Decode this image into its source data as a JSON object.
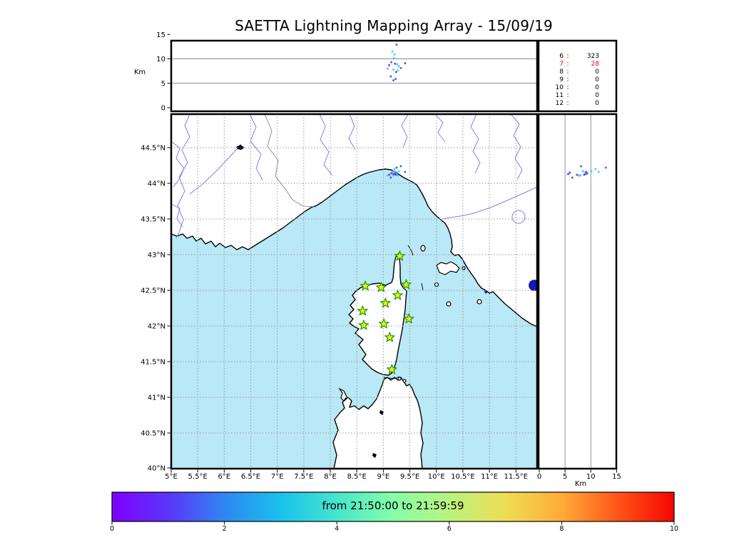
{
  "title": "SAETTA Lightning Mapping Array - 15/09/19",
  "top_panel": {
    "ylabel": "Km",
    "ytick_labels": [
      "0",
      "5",
      "10",
      "15"
    ]
  },
  "counts_panel": {
    "rows": [
      {
        "label": "6",
        "value": "323",
        "color": "#000000"
      },
      {
        "label": "7",
        "value": "28",
        "color": "#ff0000"
      },
      {
        "label": "8",
        "value": "0",
        "color": "#000000"
      },
      {
        "label": "9",
        "value": "0",
        "color": "#000000"
      },
      {
        "label": "10",
        "value": "0",
        "color": "#000000"
      },
      {
        "label": "11",
        "value": "0",
        "color": "#000000"
      },
      {
        "label": "12",
        "value": "0",
        "color": "#000000"
      }
    ]
  },
  "map_panel": {
    "lon_tick_labels": [
      "5°E",
      "5.5°E",
      "6°E",
      "6.5°E",
      "7°E",
      "7.5°E",
      "8°E",
      "8.5°E",
      "9°E",
      "9.5°E",
      "10°E",
      "10.5°E",
      "11°E",
      "11.5°E"
    ],
    "lat_tick_labels": [
      "44.5°N",
      "44°N",
      "43.5°N",
      "43°N",
      "42.5°N",
      "42°N",
      "41.5°N",
      "41°N",
      "40.5°N",
      "40°N"
    ]
  },
  "right_panel": {
    "xlabel": "Km",
    "xtick_labels": [
      "0",
      "5",
      "10",
      "15"
    ]
  },
  "colorbar": {
    "label": "from 21:50:00 to 21:59:59",
    "tick_labels": [
      "0",
      "2",
      "4",
      "6",
      "8",
      "10"
    ],
    "gradient": [
      "#7f00ff",
      "#5a35f8",
      "#2f86f2",
      "#19c2ec",
      "#46e5cc",
      "#85ffa9",
      "#baf37e",
      "#eedd55",
      "#ffab3a",
      "#ff5517",
      "#f80400"
    ]
  },
  "colors": {
    "sea": "#b9e8f6",
    "land": "#ffffff",
    "coast": "#000000",
    "grid": "#999999",
    "river": "#8080f0",
    "country_border": "#777777",
    "panel_grid": "#888888",
    "star_fill": "#ffee00",
    "star_edge": "#1fa01f",
    "lake_dark": "#1515cc",
    "highlight_row": "#ff0000"
  },
  "chart_data": {
    "type": "scatter",
    "title": "SAETTA Lightning Mapping Array - 15/09/19",
    "description": "Lightning VHF sources colored by time over a map of the Corsica region, with altitude-vs-longitude projection (top), altitude-vs-latitude projection (right), per-station count table, and a time colorbar.",
    "axes": {
      "map": {
        "xlim": [
          5,
          11.9
        ],
        "ylim": [
          40,
          44.97
        ],
        "lon_ticks_degE": [
          5,
          5.5,
          6,
          6.5,
          7,
          7.5,
          8,
          8.5,
          9,
          9.5,
          10,
          10.5,
          11,
          11.5
        ],
        "lat_ticks_degN": [
          44.5,
          44,
          43.5,
          43,
          42.5,
          42,
          41.5,
          41,
          40.5,
          40
        ],
        "grid": "dashed"
      },
      "top": {
        "ylabel": "Km",
        "ylim": [
          0,
          15
        ],
        "yticks": [
          0,
          5,
          10,
          15
        ],
        "gridlines_y": [
          5,
          10
        ]
      },
      "right": {
        "xlabel": "Km",
        "xlim": [
          0,
          15
        ],
        "xticks": [
          0,
          5,
          10,
          15
        ],
        "gridlines_x": [
          5,
          10
        ]
      }
    },
    "station_counts": [
      [
        "6",
        323
      ],
      [
        "7",
        28
      ],
      [
        "8",
        0
      ],
      [
        "9",
        0
      ],
      [
        "10",
        0
      ],
      [
        "11",
        0
      ],
      [
        "12",
        0
      ]
    ],
    "highlighted_count_row": "7",
    "stations_lon_lat": [
      [
        9.31,
        42.98
      ],
      [
        8.66,
        42.56
      ],
      [
        8.96,
        42.54
      ],
      [
        9.43,
        42.58
      ],
      [
        9.27,
        42.43
      ],
      [
        9.04,
        42.32
      ],
      [
        8.61,
        42.21
      ],
      [
        9.48,
        42.1
      ],
      [
        8.63,
        42.01
      ],
      [
        9.01,
        42.03
      ],
      [
        9.12,
        41.84
      ],
      [
        9.16,
        41.39
      ]
    ],
    "sources": [
      {
        "lon": 9.25,
        "lat": 44.22,
        "alt_km": 12.9,
        "color": "#3b5bf2"
      },
      {
        "lon": 9.17,
        "lat": 44.16,
        "alt_km": 11.5,
        "color": "#3fd4e9"
      },
      {
        "lon": 9.21,
        "lat": 44.2,
        "alt_km": 10.9,
        "color": "#38d8e8"
      },
      {
        "lon": 9.2,
        "lat": 44.17,
        "alt_km": 10.1,
        "color": "#2fc9ef"
      },
      {
        "lon": 9.15,
        "lat": 44.14,
        "alt_km": 9.3,
        "color": "#9b30e0"
      },
      {
        "lon": 9.22,
        "lat": 44.13,
        "alt_km": 9.0,
        "color": "#3b5bf2"
      },
      {
        "lon": 9.26,
        "lat": 44.15,
        "alt_km": 8.9,
        "color": "#38d0e8"
      },
      {
        "lon": 9.41,
        "lat": 44.16,
        "alt_km": 9.1,
        "color": "#3a60f2"
      },
      {
        "lon": 9.29,
        "lat": 44.17,
        "alt_km": 8.5,
        "color": "#34ccee"
      },
      {
        "lon": 9.33,
        "lat": 44.24,
        "alt_km": 8.1,
        "color": "#3a62f0"
      },
      {
        "lon": 9.19,
        "lat": 44.11,
        "alt_km": 7.8,
        "color": "#36d2e6"
      },
      {
        "lon": 9.24,
        "lat": 44.12,
        "alt_km": 7.3,
        "color": "#8c2cd4"
      },
      {
        "lon": 9.14,
        "lat": 44.08,
        "alt_km": 6.4,
        "color": "#3a5cf0"
      },
      {
        "lon": 9.11,
        "lat": 44.12,
        "alt_km": 8.7,
        "color": "#8833dd"
      },
      {
        "lon": 9.08,
        "lat": 44.11,
        "alt_km": 8.0,
        "color": "#44c8f0"
      },
      {
        "lon": 9.27,
        "lat": 44.11,
        "alt_km": 7.6,
        "color": "#40ccee"
      },
      {
        "lon": 9.19,
        "lat": 44.13,
        "alt_km": 5.6,
        "color": "#8a2be2"
      },
      {
        "lon": 9.23,
        "lat": 44.15,
        "alt_km": 5.9,
        "color": "#4455ee"
      }
    ],
    "colorbar": {
      "label": "from 21:50:00 to 21:59:59",
      "range": [
        0,
        10
      ],
      "ticks": [
        0,
        2,
        4,
        6,
        8,
        10
      ]
    }
  }
}
